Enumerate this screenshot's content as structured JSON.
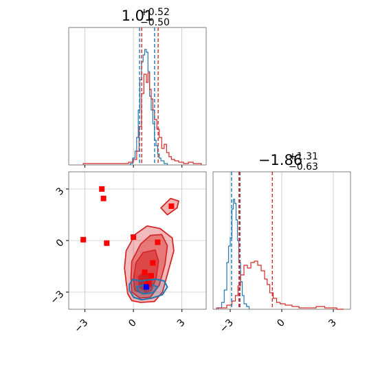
{
  "chart_data": {
    "type": "corner",
    "grid": true,
    "colors": {
      "series_a": "#1f77b4",
      "series_b": "#d62728",
      "markers": "#ff0000",
      "truth_marker": "#0000ff",
      "grid": "#b0b0b0",
      "frame": "#7f7f7f"
    },
    "panels": {
      "top_hist": {
        "title": {
          "value": "1.01",
          "upper": "+0.52",
          "lower": "−0.50"
        },
        "xlim": [
          -4.0,
          4.5
        ],
        "x_ticks": [
          -3,
          0,
          3
        ],
        "quantile_lines": {
          "series_a": [
            0.38,
            1.31
          ],
          "series_b": [
            0.51,
            1.53
          ]
        },
        "series_a_hist": {
          "x": [
            -0.2,
            -0.05,
            0.1,
            0.2,
            0.3,
            0.4,
            0.5,
            0.6,
            0.7,
            0.8,
            0.9,
            1.0,
            1.1,
            1.2,
            1.3,
            1.4,
            1.5,
            1.6,
            1.7,
            1.9,
            2.1
          ],
          "y": [
            0.01,
            0.05,
            0.1,
            0.2,
            0.4,
            0.62,
            0.75,
            0.8,
            0.84,
            0.82,
            0.68,
            0.5,
            0.4,
            0.3,
            0.18,
            0.14,
            0.08,
            0.05,
            0.03,
            0.01,
            0.0
          ]
        },
        "series_b_hist": {
          "x": [
            -3.1,
            -0.8,
            -0.3,
            0.0,
            0.2,
            0.35,
            0.5,
            0.65,
            0.8,
            0.9,
            1.0,
            1.1,
            1.2,
            1.3,
            1.45,
            1.6,
            1.75,
            1.9,
            2.05,
            2.2,
            2.35,
            2.55,
            2.8,
            3.1,
            3.4,
            3.7,
            4.2
          ],
          "y": [
            0.01,
            0.01,
            0.02,
            0.04,
            0.1,
            0.28,
            0.52,
            0.66,
            0.6,
            0.67,
            0.55,
            0.48,
            0.4,
            0.33,
            0.26,
            0.2,
            0.12,
            0.15,
            0.09,
            0.06,
            0.04,
            0.03,
            0.02,
            0.01,
            0.02,
            0.01,
            0.0
          ]
        }
      },
      "side_hist": {
        "title": {
          "value": "−1.86",
          "upper": "+1.31",
          "lower": "−0.63"
        },
        "xlim": [
          -4.0,
          4.0
        ],
        "x_ticks": [
          -3,
          0,
          3
        ],
        "quantile_lines": {
          "series_a": [
            -2.92,
            -2.43
          ],
          "series_b": [
            -2.49,
            -2.46,
            -0.55
          ]
        },
        "series_a_hist": {
          "x": [
            -3.7,
            -3.5,
            -3.35,
            -3.2,
            -3.1,
            -3.0,
            -2.9,
            -2.82,
            -2.74,
            -2.66,
            -2.58,
            -2.5,
            -2.4,
            -2.3,
            -2.2,
            -2.05,
            -1.9
          ],
          "y": [
            0.01,
            0.05,
            0.14,
            0.34,
            0.46,
            0.52,
            0.73,
            0.8,
            0.77,
            0.65,
            0.5,
            0.34,
            0.2,
            0.1,
            0.04,
            0.02,
            0.0
          ]
        },
        "series_b_hist": {
          "x": [
            -3.8,
            -3.2,
            -2.9,
            -2.7,
            -2.55,
            -2.4,
            -2.2,
            -2.0,
            -1.8,
            -1.6,
            -1.4,
            -1.2,
            -1.0,
            -0.85,
            -0.7,
            -0.5,
            -0.3,
            -0.1,
            0.2,
            0.6,
            1.0,
            1.5,
            2.0,
            2.5,
            3.2,
            3.6
          ],
          "y": [
            0.01,
            0.03,
            0.06,
            0.1,
            0.17,
            0.25,
            0.32,
            0.3,
            0.34,
            0.35,
            0.32,
            0.28,
            0.22,
            0.18,
            0.12,
            0.08,
            0.05,
            0.04,
            0.03,
            0.02,
            0.01,
            0.01,
            0.02,
            0.01,
            0.0,
            0.0
          ]
        }
      },
      "scatter_2d": {
        "xlim": [
          -4.0,
          4.5
        ],
        "ylim": [
          -4.0,
          4.0
        ],
        "x_ticks": [
          -3,
          0,
          3
        ],
        "y_ticks": [
          -3,
          0,
          3
        ],
        "contours_b": [
          [
            [
              -0.35,
              -3.1
            ],
            [
              -0.45,
              -2.4
            ],
            [
              -0.55,
              -1.6
            ],
            [
              -0.45,
              -0.6
            ],
            [
              0.1,
              0.35
            ],
            [
              0.85,
              0.85
            ],
            [
              1.65,
              0.7
            ],
            [
              2.4,
              0.15
            ],
            [
              2.5,
              -0.6
            ],
            [
              2.15,
              -1.8
            ],
            [
              1.8,
              -3.0
            ],
            [
              1.3,
              -3.55
            ],
            [
              0.45,
              -3.6
            ],
            [
              -0.1,
              -3.5
            ]
          ],
          [
            [
              -0.1,
              -3.0
            ],
            [
              -0.15,
              -2.2
            ],
            [
              -0.1,
              -1.2
            ],
            [
              0.45,
              -0.2
            ],
            [
              1.05,
              0.3
            ],
            [
              1.75,
              0.35
            ],
            [
              2.1,
              -0.3
            ],
            [
              1.95,
              -1.4
            ],
            [
              1.6,
              -2.6
            ],
            [
              1.05,
              -3.3
            ],
            [
              0.4,
              -3.35
            ]
          ],
          [
            [
              0.1,
              -2.9
            ],
            [
              0.0,
              -2.3
            ],
            [
              0.15,
              -1.3
            ],
            [
              0.6,
              -0.7
            ],
            [
              1.35,
              -0.55
            ],
            [
              1.55,
              -1.2
            ],
            [
              1.4,
              -2.2
            ],
            [
              1.1,
              -2.9
            ],
            [
              0.6,
              -3.1
            ]
          ],
          [
            [
              0.35,
              -2.7
            ],
            [
              0.3,
              -2.1
            ],
            [
              0.75,
              -1.8
            ],
            [
              1.15,
              -2.1
            ],
            [
              1.1,
              -2.7
            ],
            [
              0.75,
              -2.95
            ]
          ],
          [
            [
              1.7,
              1.9
            ],
            [
              2.3,
              2.45
            ],
            [
              2.8,
              2.3
            ],
            [
              2.7,
              1.9
            ],
            [
              2.1,
              1.5
            ]
          ]
        ],
        "contours_a": [
          [
            [
              -0.25,
              -2.55
            ],
            [
              -0.05,
              -2.25
            ],
            [
              0.4,
              -2.35
            ],
            [
              0.9,
              -2.3
            ],
            [
              1.4,
              -2.25
            ],
            [
              1.9,
              -2.35
            ],
            [
              2.1,
              -2.7
            ],
            [
              1.8,
              -3.15
            ],
            [
              1.15,
              -3.35
            ],
            [
              0.5,
              -3.45
            ],
            [
              0.0,
              -3.3
            ],
            [
              -0.25,
              -2.9
            ]
          ],
          [
            [
              0.2,
              -2.7
            ],
            [
              0.6,
              -2.6
            ],
            [
              1.1,
              -2.55
            ],
            [
              1.5,
              -2.7
            ],
            [
              1.2,
              -3.05
            ],
            [
              0.6,
              -3.1
            ],
            [
              0.3,
              -2.95
            ]
          ]
        ],
        "markers": [
          {
            "x": -3.1,
            "y": 0.05
          },
          {
            "x": -1.95,
            "y": 3.0
          },
          {
            "x": -1.85,
            "y": 2.45
          },
          {
            "x": -1.65,
            "y": -0.15
          },
          {
            "x": 0.0,
            "y": 0.2
          },
          {
            "x": 1.5,
            "y": -0.1
          },
          {
            "x": 2.35,
            "y": 2.0
          },
          {
            "x": 1.2,
            "y": -1.3
          },
          {
            "x": 0.7,
            "y": -1.85
          },
          {
            "x": 1.1,
            "y": -2.05
          },
          {
            "x": 0.95,
            "y": -2.5
          },
          {
            "x": 0.85,
            "y": -2.55
          }
        ],
        "truth_marker": {
          "x": 0.8,
          "y": -2.7
        }
      }
    }
  }
}
